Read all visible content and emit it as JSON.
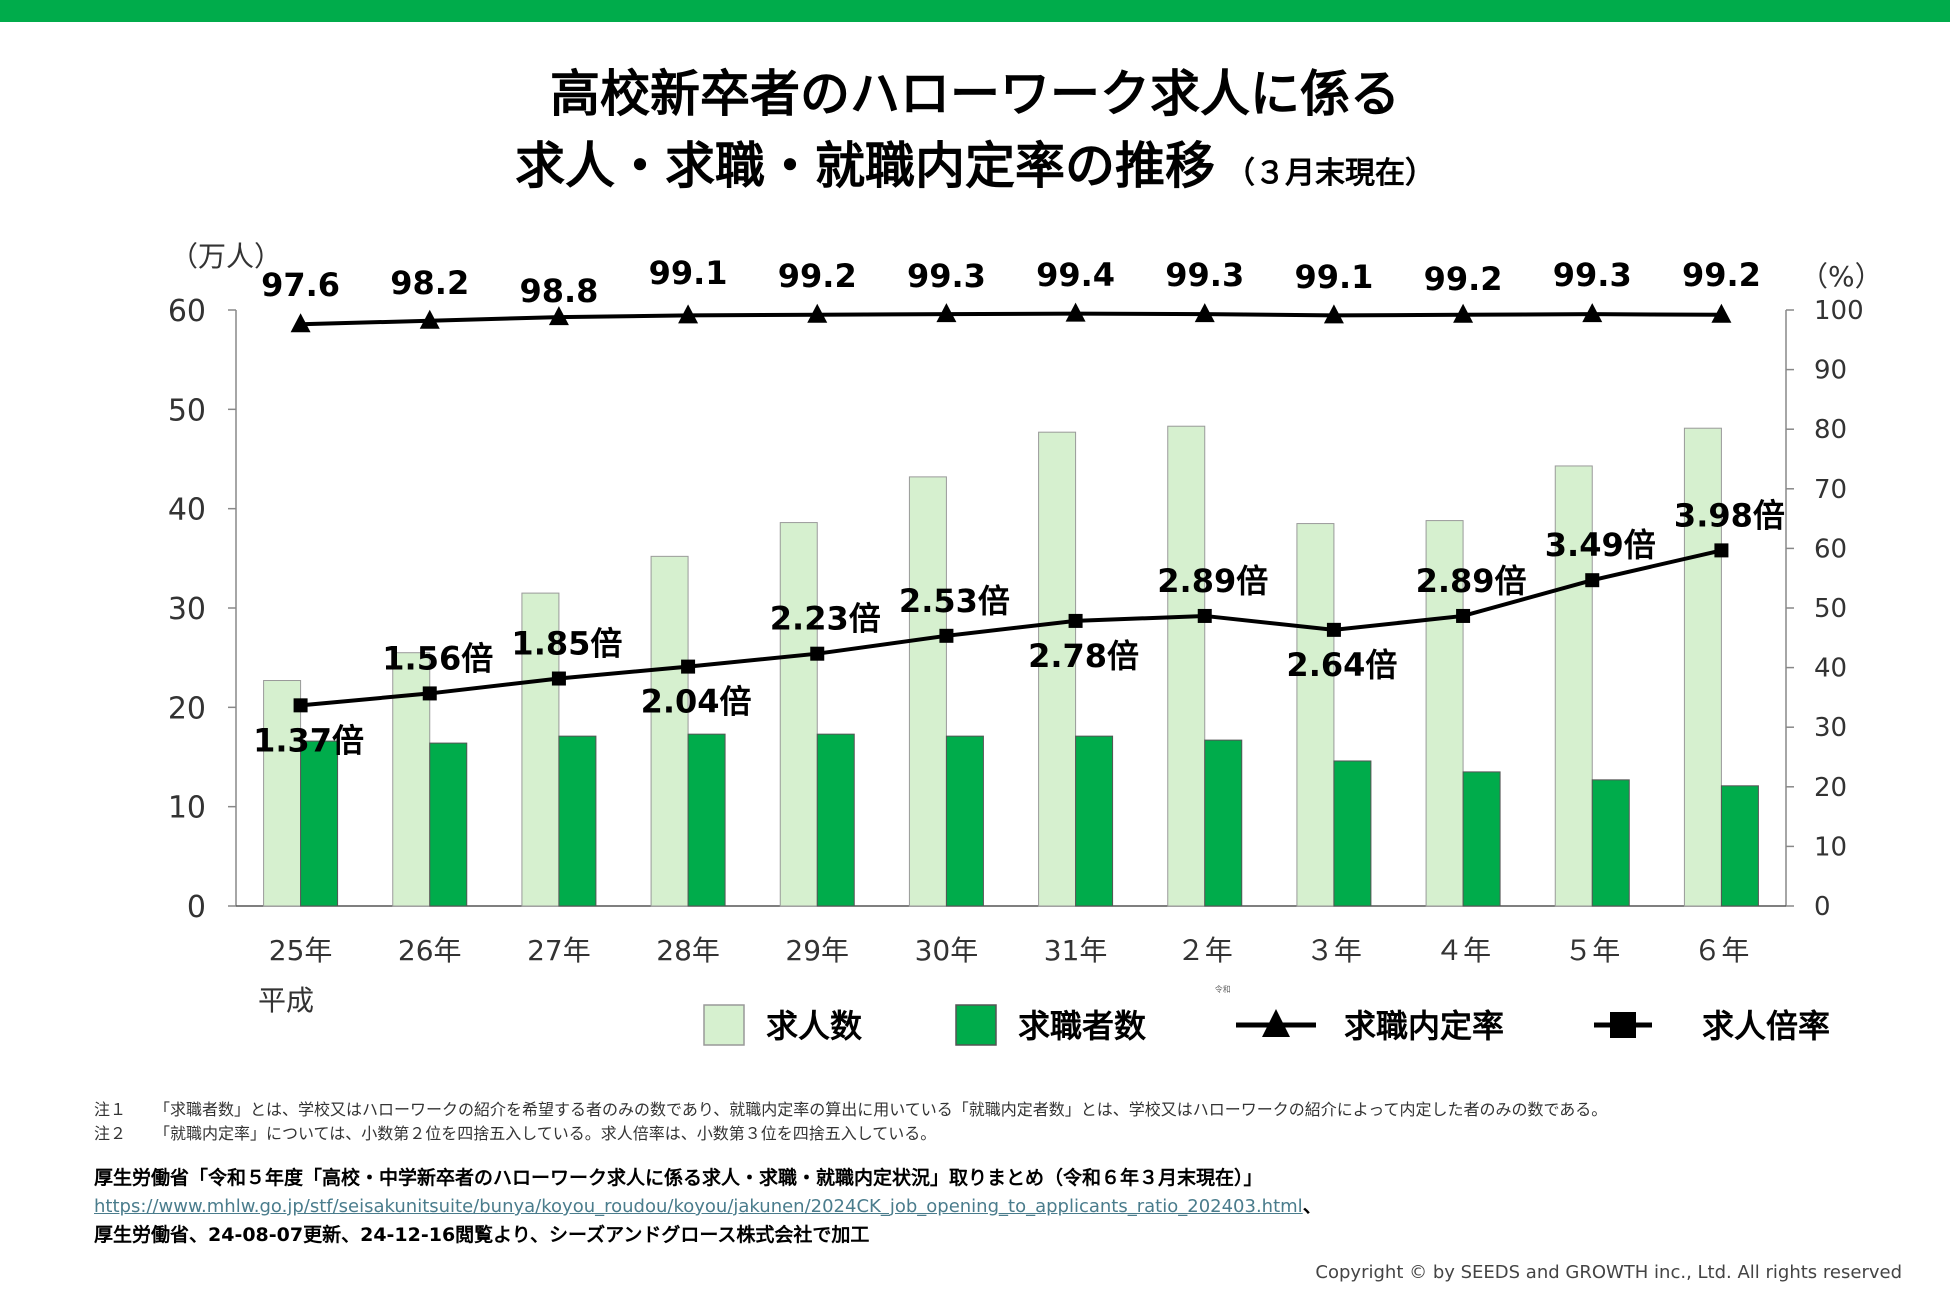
{
  "title": {
    "line1": "高校新卒者のハローワーク求人に係る",
    "line2": "求人・求職・就職内定率の推移",
    "line2_sub": "（３月末現在）"
  },
  "chart_data": {
    "type": "bar",
    "categories": [
      "25年",
      "26年",
      "27年",
      "28年",
      "29年",
      "30年",
      "31年",
      "２年",
      "３年",
      "４年",
      "５年",
      "６年"
    ],
    "era_labels": {
      "heisei": "平成",
      "reiwa": "令和"
    },
    "left_axis": {
      "unit_label": "（万人）",
      "range": [
        0,
        60
      ],
      "ticks": [
        0,
        10,
        20,
        30,
        40,
        50,
        60
      ]
    },
    "right_axis": {
      "unit_label": "（%）",
      "range": [
        0,
        100
      ],
      "ticks": [
        0,
        10,
        20,
        30,
        40,
        50,
        60,
        70,
        80,
        90,
        100
      ]
    },
    "series": [
      {
        "name": "求人数",
        "type": "bar",
        "axis": "left",
        "color": "#d6f0cf",
        "values": [
          22.7,
          25.5,
          31.5,
          35.2,
          38.6,
          43.2,
          47.7,
          48.3,
          38.5,
          38.8,
          44.3,
          48.1
        ]
      },
      {
        "name": "求職者数",
        "type": "bar",
        "axis": "left",
        "color": "#00ac4b",
        "values": [
          16.6,
          16.4,
          17.1,
          17.3,
          17.3,
          17.1,
          17.1,
          16.7,
          14.6,
          13.5,
          12.7,
          12.1
        ]
      },
      {
        "name": "求職内定率",
        "type": "line",
        "marker": "triangle",
        "axis": "right",
        "values": [
          97.6,
          98.2,
          98.8,
          99.1,
          99.2,
          99.3,
          99.4,
          99.3,
          99.1,
          99.2,
          99.3,
          99.2
        ],
        "labels": [
          "97.6",
          "98.2",
          "98.8",
          "99.1",
          "99.2",
          "99.3",
          "99.4",
          "99.3",
          "99.1",
          "99.2",
          "99.3",
          "99.2"
        ]
      },
      {
        "name": "求人倍率",
        "type": "line",
        "marker": "square",
        "axis": "left",
        "values": [
          20.2,
          21.4,
          22.9,
          24.1,
          25.4,
          27.2,
          28.7,
          29.2,
          27.8,
          29.2,
          32.8,
          35.8
        ],
        "labels": [
          "1.37倍",
          "1.56倍",
          "1.85倍",
          "2.04倍",
          "2.23倍",
          "2.53倍",
          "2.78倍",
          "2.89倍",
          "2.64倍",
          "2.89倍",
          "3.49倍",
          "3.98倍"
        ],
        "label_positions": [
          "below",
          "above",
          "above",
          "below",
          "above",
          "above",
          "below",
          "above",
          "below",
          "above",
          "above",
          "above"
        ]
      }
    ],
    "legend": [
      {
        "name": "求人数",
        "kind": "box-light"
      },
      {
        "name": "求職者数",
        "kind": "box-dark"
      },
      {
        "name": "求職内定率",
        "kind": "line-triangle"
      },
      {
        "name": "求人倍率",
        "kind": "line-square"
      }
    ]
  },
  "notes": [
    {
      "label": "注１",
      "text": "「求職者数」とは、学校又はハローワークの紹介を希望する者のみの数であり、就職内定率の算出に用いている「就職内定者数」とは、学校又はハローワークの紹介によって内定した者のみの数である。"
    },
    {
      "label": "注２",
      "text": "「就職内定率」については、小数第２位を四捨五入している。求人倍率は、小数第３位を四捨五入している。"
    }
  ],
  "source": {
    "line1": "厚生労働省「令和５年度「高校・中学新卒者のハローワーク求人に係る求人・求職・就職内定状況」取りまとめ（令和６年３月末現在）」",
    "url": "https://www.mhlw.go.jp/stf/seisakunitsuite/bunya/koyou_roudou/koyou/jakunen/2024CK_job_opening_to_applicants_ratio_202403.html",
    "url_suffix": "、",
    "line3": "厚生労働省、24-08-07更新、24-12-16閲覧より、シーズアンドグロース株式会社で加工"
  },
  "copyright": "Copyright © by SEEDS and GROWTH inc., Ltd. All rights reserved"
}
